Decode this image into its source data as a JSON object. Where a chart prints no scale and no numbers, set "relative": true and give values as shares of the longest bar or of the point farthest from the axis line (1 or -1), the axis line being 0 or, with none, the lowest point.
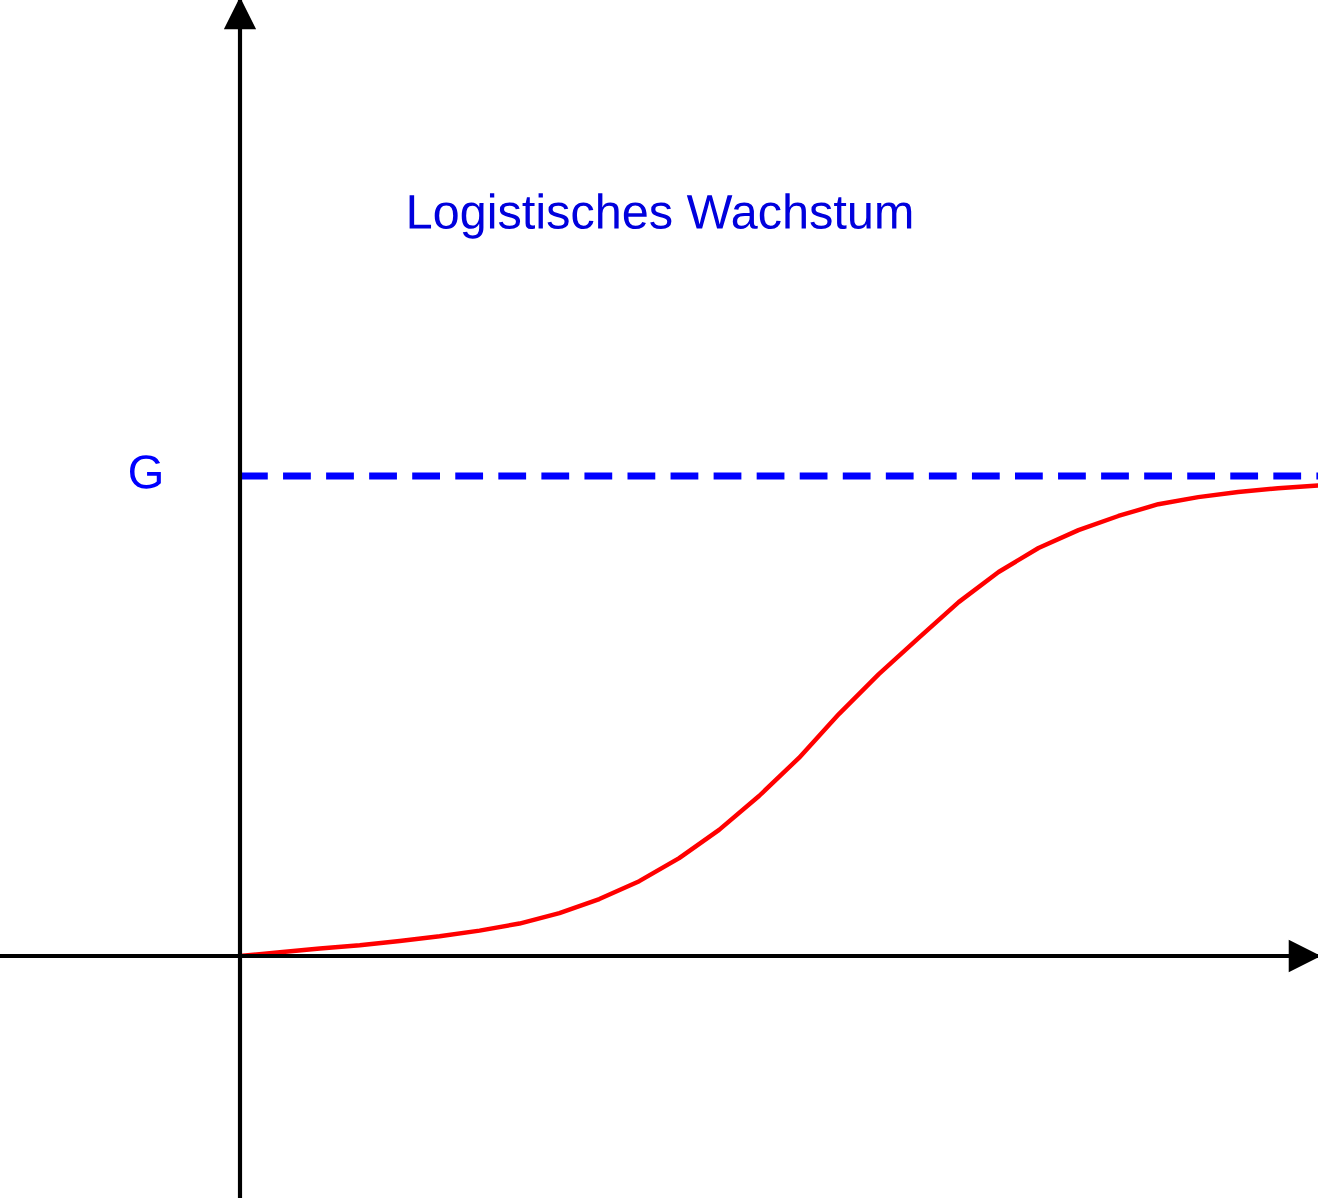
{
  "chart_data": {
    "type": "line",
    "title": "Logistisches Wachstum",
    "relative": true,
    "categories": [
      null,
      null,
      null,
      null,
      null,
      null,
      null,
      null,
      null,
      null,
      null,
      null,
      null,
      null,
      null,
      null,
      null,
      null,
      null,
      null,
      null,
      null,
      null,
      null,
      null,
      null,
      null,
      null
    ],
    "series": [
      {
        "color": "#ff0000",
        "values": [
          0,
          0.008,
          0.016,
          0.023,
          0.032,
          0.042,
          0.054,
          0.069,
          0.091,
          0.121,
          0.159,
          0.208,
          0.268,
          0.34,
          0.421,
          0.514,
          0.599,
          0.676,
          0.752,
          0.816,
          0.867,
          0.905,
          0.935,
          0.96,
          0.975,
          0.986,
          0.994,
          1
        ]
      }
    ],
    "ref_lines": [
      {
        "axis": "y",
        "value": 1.02,
        "label": "G",
        "color": "#0000ff",
        "line_style": "dashed"
      }
    ]
  }
}
